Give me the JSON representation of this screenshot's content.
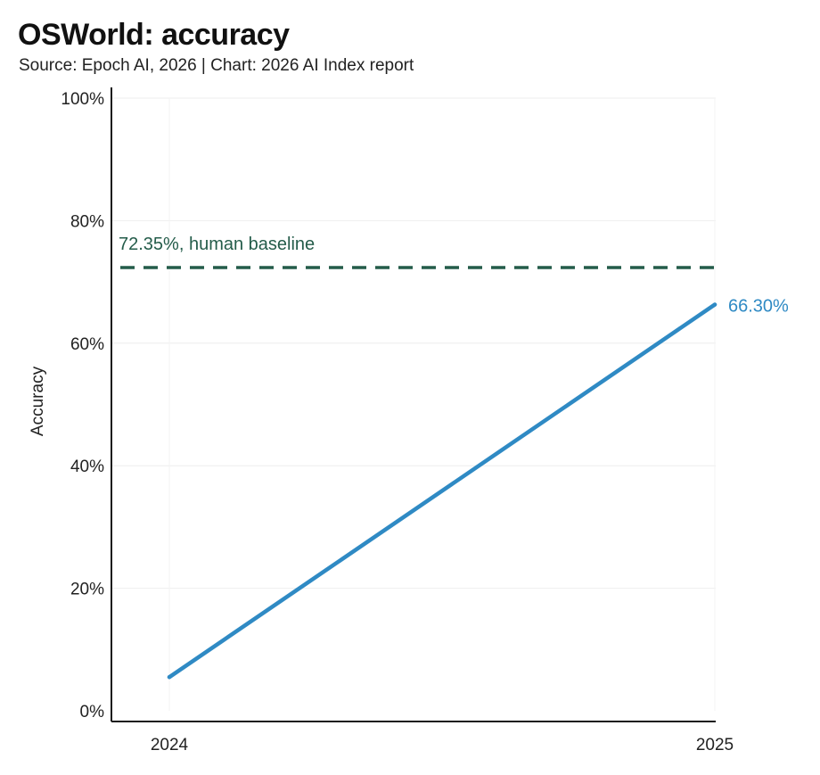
{
  "title": "OSWorld: accuracy",
  "subtitle": "Source: Epoch AI, 2026 | Chart: 2026 AI Index report",
  "chart_data": {
    "type": "line",
    "title": "OSWorld: accuracy",
    "subtitle": "Source: Epoch AI, 2026 | Chart: 2026 AI Index report",
    "xlabel": "",
    "ylabel": "Accuracy",
    "x_categories": [
      "2024",
      "2025"
    ],
    "y_ticks": [
      0,
      20,
      40,
      60,
      80,
      100
    ],
    "y_tick_labels": [
      "0%",
      "20%",
      "40%",
      "60%",
      "80%",
      "100%"
    ],
    "ylim": [
      0,
      100
    ],
    "grid": true,
    "series": [
      {
        "values": [
          5.5,
          66.3
        ],
        "end_label": "66.30%",
        "color": "#2f8ac4"
      }
    ],
    "reference_lines": [
      {
        "value": 72.35,
        "label": "72.35%, human baseline",
        "style": "dashed",
        "color": "#245c4a"
      }
    ]
  }
}
